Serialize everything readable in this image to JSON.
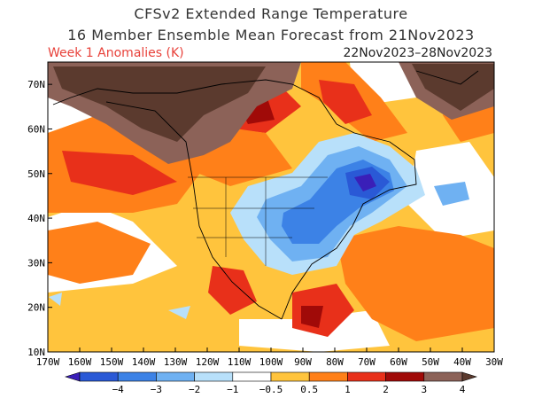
{
  "header": {
    "title_line1": "CFSv2 Extended Range Temperature",
    "title_line2": "16 Member Ensemble Mean Forecast from 21Nov2023",
    "subtitle_left": "Week 1 Anomalies (K)",
    "subtitle_right": "22Nov2023–28Nov2023",
    "subtitle_left_color": "#e8413a",
    "subtitle_right_color": "#222222"
  },
  "map": {
    "lon_range": [
      -170,
      -30
    ],
    "lat_range": [
      10,
      75
    ],
    "lat_ticks": [
      "70N",
      "60N",
      "50N",
      "40N",
      "30N",
      "20N",
      "10N"
    ],
    "lon_ticks": [
      "170W",
      "160W",
      "150W",
      "140W",
      "130W",
      "120W",
      "110W",
      "100W",
      "90W",
      "80W",
      "70W",
      "60W",
      "50W",
      "40W",
      "30W"
    ]
  },
  "colorbar": {
    "labels": [
      "−4",
      "−3",
      "−2",
      "−1",
      "−0.5",
      "0.5",
      "1",
      "2",
      "3",
      "4"
    ],
    "colors": [
      "#3a1fb8",
      "#2a59d6",
      "#3c82e6",
      "#6fb1f2",
      "#b8e0fa",
      "#ffffff",
      "#ffc43d",
      "#ff8019",
      "#e8301a",
      "#a00a08",
      "#8c6258",
      "#5b3a2e"
    ]
  }
}
